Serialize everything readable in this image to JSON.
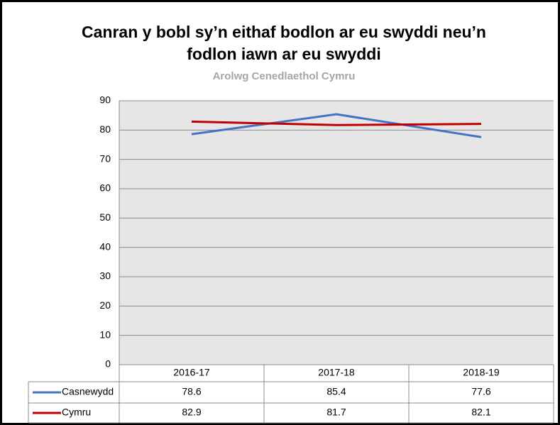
{
  "chart_data": {
    "type": "line",
    "title": "Canran y bobl sy’n eithaf bodlon ar eu swyddi neu’n fodlon iawn ar eu swyddi",
    "subtitle": "Arolwg Cenedlaethol Cymru",
    "categories": [
      "2016-17",
      "2017-18",
      "2018-19"
    ],
    "series": [
      {
        "name": "Casnewydd",
        "color": "#4472c4",
        "values": [
          78.6,
          85.4,
          77.6
        ]
      },
      {
        "name": "Cymru",
        "color": "#c00000",
        "values": [
          82.9,
          81.7,
          82.1
        ]
      }
    ],
    "ylim": [
      0,
      90
    ],
    "yticks": [
      0,
      10,
      20,
      30,
      40,
      50,
      60,
      70,
      80,
      90
    ],
    "grid": true
  }
}
